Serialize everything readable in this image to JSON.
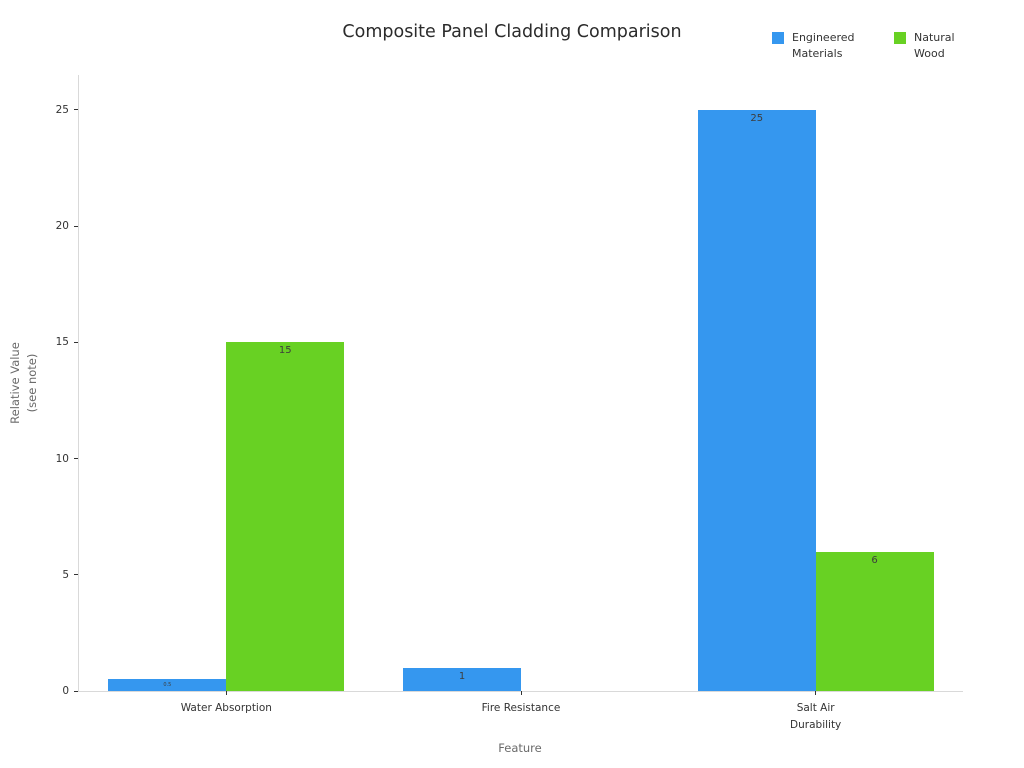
{
  "chart_data": {
    "type": "bar",
    "title": "Composite Panel Cladding Comparison",
    "xlabel": "Feature",
    "ylabel": "Relative Value\n(see note)",
    "categories": [
      "Water Absorption",
      "Fire Resistance",
      "Salt Air Durability"
    ],
    "series": [
      {
        "name": "Engineered Materials",
        "color": "#3597ef",
        "values": [
          0.5,
          1,
          25
        ],
        "labels": [
          "0.5",
          "1",
          "25"
        ]
      },
      {
        "name": "Natural Wood",
        "color": "#68d123",
        "values": [
          15,
          0,
          6
        ],
        "labels": [
          "15",
          "",
          "6"
        ]
      }
    ],
    "ylim": [
      0,
      26.5
    ],
    "yticks": [
      0,
      5,
      10,
      15,
      20,
      25
    ],
    "legend_position": "top-right",
    "grid": false,
    "background": "#ffffff"
  }
}
